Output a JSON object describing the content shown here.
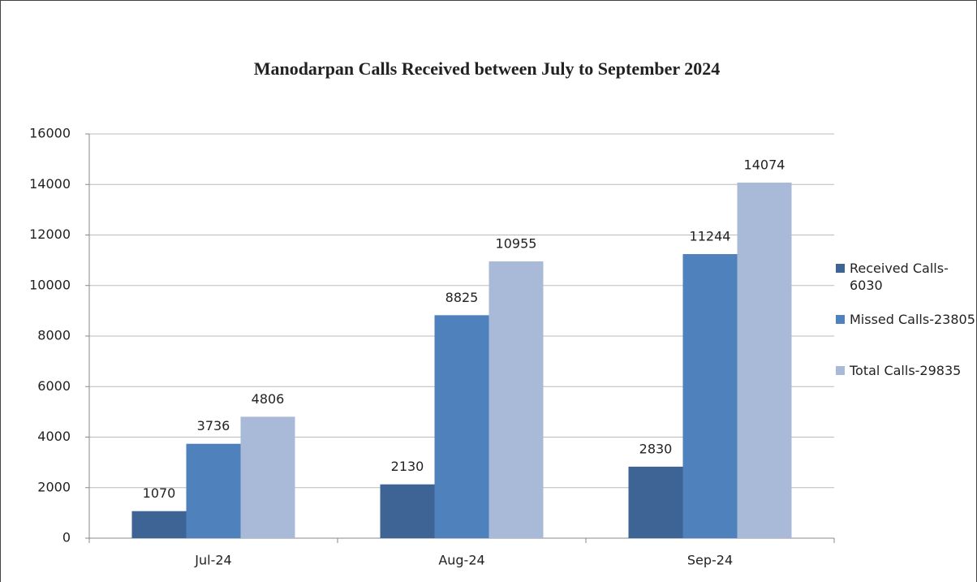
{
  "chart_data": {
    "type": "bar",
    "title": "Manodarpan Calls Received between July to September 2024",
    "categories": [
      "Jul-24",
      "Aug-24",
      "Sep-24"
    ],
    "series": [
      {
        "name": "Received Calls-6030",
        "color": "#3e6496",
        "values": [
          1070,
          2130,
          2830
        ]
      },
      {
        "name": "Missed Calls-23805",
        "color": "#4f81bd",
        "values": [
          3736,
          8825,
          11244
        ]
      },
      {
        "name": "Total Calls-29835",
        "color": "#a9b9d8",
        "values": [
          4806,
          10955,
          14074
        ]
      }
    ],
    "ylim": [
      0,
      16000
    ],
    "yticks": [
      0,
      2000,
      4000,
      6000,
      8000,
      10000,
      12000,
      14000,
      16000
    ],
    "grid": true,
    "legend": "right"
  }
}
